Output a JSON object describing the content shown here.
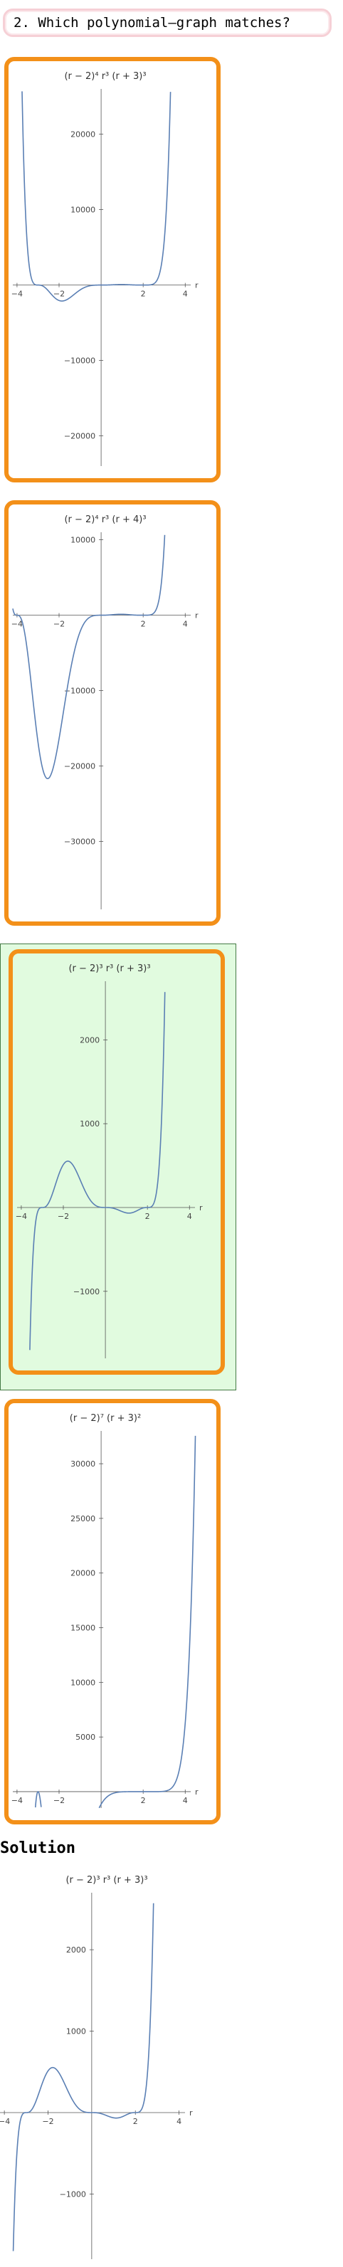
{
  "question": {
    "text": "2. Which polynomial–graph matches?"
  },
  "solution": {
    "title": "Solution"
  },
  "colors": {
    "accent_border": "#f39019",
    "selected_bg": "#e1fbdf",
    "curve": "#5a7fb4"
  },
  "options": [
    {
      "id": "A",
      "title": "(r − 2)⁴ r³ (r + 3)³",
      "selected": false,
      "chart_data": {
        "type": "line",
        "function": "(r-2)^4 r^3 (r+3)^3",
        "xlabel": "r",
        "xlim": [
          -4.2,
          4.6
        ],
        "ylim": [
          -24000,
          26000
        ],
        "xticks": [
          -4,
          -2,
          2,
          4
        ],
        "yticks": [
          -20000,
          -10000,
          10000,
          20000
        ],
        "ytick_labels": [
          "−20000",
          "−10000",
          "10000",
          "20000"
        ]
      }
    },
    {
      "id": "B",
      "title": "(r − 2)⁴ r³ (r + 4)³",
      "selected": false,
      "chart_data": {
        "type": "line",
        "function": "(r-2)^4 r^3 (r+4)^3",
        "xlabel": "r",
        "xlim": [
          -4.2,
          4.6
        ],
        "ylim": [
          -39000,
          11000
        ],
        "xticks": [
          -4,
          -2,
          2,
          4
        ],
        "yticks": [
          -30000,
          -20000,
          -10000,
          10000
        ],
        "ytick_labels": [
          "−30000",
          "−20000",
          "−10000",
          "10000"
        ]
      }
    },
    {
      "id": "C",
      "title": "(r − 2)³ r³ (r + 3)³",
      "selected": true,
      "chart_data": {
        "type": "line",
        "function": "(r-2)^3 r^3 (r+3)^3",
        "xlabel": "r",
        "xlim": [
          -4.2,
          4.6
        ],
        "ylim": [
          -1800,
          2700
        ],
        "xticks": [
          -4,
          -2,
          2,
          4
        ],
        "yticks": [
          -1000,
          1000,
          2000
        ],
        "ytick_labels": [
          "−1000",
          "1000",
          "2000"
        ]
      }
    },
    {
      "id": "D",
      "title": "(r − 2)⁷ (r + 3)²",
      "selected": false,
      "chart_data": {
        "type": "line",
        "function": "(r-2)^7 (r+3)^2",
        "xlabel": "r",
        "xlim": [
          -4.2,
          4.6
        ],
        "ylim": [
          -1500,
          33000
        ],
        "xticks": [
          -4,
          -2,
          2,
          4
        ],
        "yticks": [
          5000,
          10000,
          15000,
          20000,
          25000,
          30000
        ],
        "ytick_labels": [
          "5000",
          "10000",
          "15000",
          "20000",
          "25000",
          "30000"
        ]
      }
    }
  ],
  "solution_plot": {
    "title": "(r − 2)³ r³ (r + 3)³",
    "chart_data": {
      "type": "line",
      "function": "(r-2)^3 r^3 (r+3)^3",
      "xlabel": "r",
      "xlim": [
        -4.2,
        4.6
      ],
      "ylim": [
        -1800,
        2700
      ],
      "xticks": [
        -4,
        -2,
        2,
        4
      ],
      "yticks": [
        -1000,
        1000,
        2000
      ],
      "ytick_labels": [
        "−1000",
        "1000",
        "2000"
      ]
    }
  }
}
